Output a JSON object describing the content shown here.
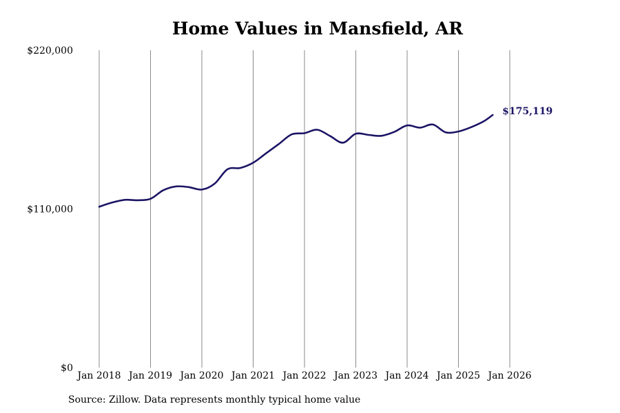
{
  "chart_data": {
    "type": "line",
    "title": "Home Values in Mansfield, AR",
    "xlabel": "",
    "ylabel": "",
    "ylim": [
      0,
      220000
    ],
    "y_ticks": [
      0,
      110000,
      220000
    ],
    "y_tick_labels": [
      "$0",
      "$110,000",
      "$220,000"
    ],
    "x_tick_labels": [
      "Jan 2018",
      "Jan 2019",
      "Jan 2020",
      "Jan 2021",
      "Jan 2022",
      "Jan 2023",
      "Jan 2024",
      "Jan 2025",
      "Jan 2026"
    ],
    "grid": "vertical",
    "legend": "none",
    "end_label": "$175,119",
    "series": [
      {
        "color": "#1b1464",
        "points": [
          [
            "2018-01",
            111500
          ],
          [
            "2018-04",
            114400
          ],
          [
            "2018-07",
            116300
          ],
          [
            "2018-10",
            116000
          ],
          [
            "2019-01",
            117000
          ],
          [
            "2019-04",
            123000
          ],
          [
            "2019-07",
            125600
          ],
          [
            "2019-10",
            125100
          ],
          [
            "2020-01",
            123400
          ],
          [
            "2020-04",
            127500
          ],
          [
            "2020-07",
            137500
          ],
          [
            "2020-10",
            138400
          ],
          [
            "2021-01",
            142000
          ],
          [
            "2021-04",
            148500
          ],
          [
            "2021-07",
            155000
          ],
          [
            "2021-10",
            161700
          ],
          [
            "2022-01",
            162500
          ],
          [
            "2022-04",
            164900
          ],
          [
            "2022-07",
            160500
          ],
          [
            "2022-10",
            155900
          ],
          [
            "2023-01",
            162100
          ],
          [
            "2023-04",
            161300
          ],
          [
            "2023-07",
            160700
          ],
          [
            "2023-10",
            163400
          ],
          [
            "2024-01",
            167900
          ],
          [
            "2024-04",
            166300
          ],
          [
            "2024-07",
            168500
          ],
          [
            "2024-10",
            163100
          ],
          [
            "2025-01",
            163700
          ],
          [
            "2025-04",
            166700
          ],
          [
            "2025-07",
            170900
          ],
          [
            "2025-09",
            175119
          ]
        ]
      }
    ]
  },
  "source_note": "Source: Zillow. Data represents monthly typical home value"
}
